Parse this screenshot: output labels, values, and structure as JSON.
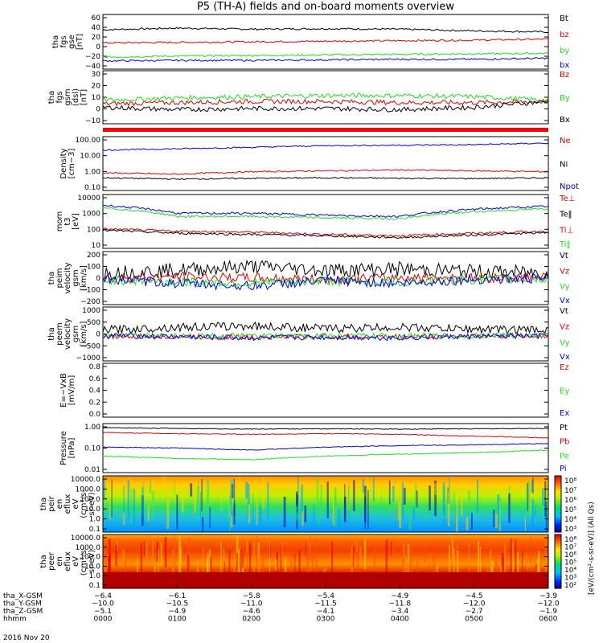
{
  "title": "P5 (TH-A) fields and on-board moments overview",
  "date_label": "2016 Nov 20",
  "colors": {
    "black": "#000000",
    "red": "#e00000",
    "green": "#20e020",
    "blue": "#0000e0",
    "flag": "#ff0000"
  },
  "panels": [
    {
      "id": "fgs-gse",
      "ylabel": [
        "tha",
        "fgs",
        "gse",
        "[nT]"
      ],
      "yticks": [
        "60",
        "40",
        "20",
        "0",
        "−20",
        "−40"
      ],
      "scale": "linear",
      "ylim": [
        -40,
        60
      ],
      "legend": [
        {
          "text": "Bt",
          "color": "#000000"
        },
        {
          "text": "bz",
          "color": "#e00000"
        },
        {
          "text": "by",
          "color": "#20e020"
        },
        {
          "text": "bx",
          "color": "#0000e0"
        }
      ]
    },
    {
      "id": "fgs-gsm",
      "ylabel": [
        "tha",
        "fgs",
        "gsm",
        "(dsl)",
        "[nT]"
      ],
      "yticks": [
        "30",
        "20",
        "10",
        "0",
        "−10"
      ],
      "scale": "linear",
      "ylim": [
        -15,
        30
      ],
      "legend": [
        {
          "text": "Bz",
          "color": "#e00000"
        },
        {
          "text": "By",
          "color": "#20e020"
        },
        {
          "text": "Bx",
          "color": "#000000"
        }
      ]
    },
    {
      "id": "density",
      "ylabel": [
        "Density",
        "[cm−3]"
      ],
      "yticks": [
        "100.00",
        "10.00",
        "1.00",
        "0.10"
      ],
      "scale": "log",
      "ylim": [
        0.05,
        100
      ],
      "legend": [
        {
          "text": "Ne",
          "color": "#e00000"
        },
        {
          "text": "Ni",
          "color": "#000000"
        },
        {
          "text": "Npot",
          "color": "#0000e0"
        }
      ]
    },
    {
      "id": "temperature",
      "ylabel": [
        "mom",
        "t3",
        "[eV]"
      ],
      "yticks": [
        "10000",
        "1000",
        "100",
        "10"
      ],
      "scale": "log",
      "ylim": [
        10,
        10000
      ],
      "legend": [
        {
          "text": "Te⊥",
          "color": "#e00000"
        },
        {
          "text": "Te‖",
          "color": "#000000"
        },
        {
          "text": "Ti⊥",
          "color": "#e00000"
        },
        {
          "text": "Ti‖",
          "color": "#20e020"
        }
      ]
    },
    {
      "id": "peim-velocity",
      "ylabel": [
        "tha",
        "peim",
        "velocity",
        "gsm",
        "[km/s]"
      ],
      "yticks": [
        "200",
        "100",
        "0",
        "−100",
        "−200"
      ],
      "scale": "linear",
      "ylim": [
        -200,
        200
      ],
      "legend": [
        {
          "text": "Vt",
          "color": "#000000"
        },
        {
          "text": "Vz",
          "color": "#e00000"
        },
        {
          "text": "Vy",
          "color": "#20e020"
        },
        {
          "text": "Vx",
          "color": "#0000e0"
        }
      ]
    },
    {
      "id": "peem-velocity",
      "ylabel": [
        "tha",
        "peem",
        "velocity",
        "gsm",
        "[km/s]"
      ],
      "yticks": [
        "1000",
        "500",
        "0",
        "−500",
        "−1000"
      ],
      "scale": "linear",
      "ylim": [
        -1000,
        1000
      ],
      "legend": [
        {
          "text": "Vt",
          "color": "#000000"
        },
        {
          "text": "Vz",
          "color": "#e00000"
        },
        {
          "text": "Vy",
          "color": "#20e020"
        },
        {
          "text": "Vx",
          "color": "#0000e0"
        }
      ]
    },
    {
      "id": "efield",
      "ylabel": [
        "E=−VxB",
        "[mV/m]"
      ],
      "yticks": [
        "0.8",
        "0.6",
        "0.4",
        "0.2",
        "0.0"
      ],
      "scale": "linear",
      "ylim": [
        0,
        0.8
      ],
      "legend": [
        {
          "text": "Ez",
          "color": "#e00000"
        },
        {
          "text": "Ey",
          "color": "#20e020"
        },
        {
          "text": "Ex",
          "color": "#0000e0"
        }
      ]
    },
    {
      "id": "pressure",
      "ylabel": [
        "Pressure",
        "[nPa]"
      ],
      "yticks": [
        "1.00",
        "0.10",
        "0.01"
      ],
      "scale": "log",
      "ylim": [
        0.01,
        1.2
      ],
      "legend": [
        {
          "text": "Pt",
          "color": "#000000"
        },
        {
          "text": "Pb",
          "color": "#e00000"
        },
        {
          "text": "Pe",
          "color": "#20e020"
        },
        {
          "text": "Pi",
          "color": "#0000e0"
        }
      ]
    },
    {
      "id": "peir-spectrogram",
      "ylabel": [
        "tha",
        "peir",
        "en",
        "eflux",
        "eV",
        "(cm²-s-",
        "sr-eV)"
      ],
      "yticks": [
        "10000.0",
        "1000.0",
        "100.0",
        "10.0",
        "1.0",
        "0.1"
      ],
      "scale": "log"
    },
    {
      "id": "peer-spectrogram",
      "ylabel": [
        "tha",
        "peer",
        "en",
        "eflux",
        "eV",
        "(cm²-s-",
        "sr-eV)"
      ],
      "yticks": [
        "10000.0",
        "1000.0",
        "100.0",
        "10.0",
        "1.0",
        "0.1"
      ],
      "scale": "log"
    }
  ],
  "colorbar": {
    "upper_ticks": [
      "10⁸",
      "10⁷",
      "10⁶",
      "10⁵",
      "10⁴",
      "10³"
    ],
    "lower_ticks": [
      "10⁸",
      "10⁷",
      "10⁶",
      "10⁵",
      "10⁴",
      "10³",
      "10²"
    ],
    "label": "[eV/(cm²-s-sr-eV)] (All Qs)"
  },
  "xaxis": {
    "rows": [
      {
        "label": "tha_X-GSM",
        "values": [
          "−6.4",
          "−6.1",
          "−5.8",
          "−5.4",
          "−4.9",
          "−4.5",
          "−3.9"
        ]
      },
      {
        "label": "tha_Y-GSM",
        "values": [
          "−10.0",
          "−10.5",
          "−11.0",
          "−11.5",
          "−11.8",
          "−12.0",
          "−12.0"
        ]
      },
      {
        "label": "tha_Z-GSM",
        "values": [
          "−5.1",
          "−4.9",
          "−4.6",
          "−4.1",
          "−3.4",
          "−2.7",
          "−1.9"
        ]
      },
      {
        "label": "hhmm",
        "values": [
          "0000",
          "0100",
          "0200",
          "0300",
          "0400",
          "0500",
          "0600"
        ]
      }
    ]
  },
  "chart_data": [
    {
      "type": "line",
      "title": "tha fgs gse",
      "ylabel": "[nT]",
      "ylim": [
        -40,
        60
      ],
      "x_hours": [
        0,
        1,
        2,
        3,
        4,
        5,
        6
      ],
      "series": [
        {
          "name": "Bt",
          "values": [
            32,
            35,
            33,
            34,
            33,
            30,
            28
          ]
        },
        {
          "name": "bz",
          "values": [
            8,
            9,
            10,
            11,
            12,
            13,
            15
          ]
        },
        {
          "name": "by",
          "values": [
            -18,
            -16,
            -15,
            -14,
            -13,
            -12,
            -11
          ]
        },
        {
          "name": "bx",
          "values": [
            -25,
            -24,
            -24,
            -23,
            -22,
            -22,
            -20
          ]
        }
      ]
    },
    {
      "type": "line",
      "title": "tha fgs gsm (dsl)",
      "ylabel": "[nT]",
      "ylim": [
        -15,
        30
      ],
      "x_hours": [
        0,
        1,
        2,
        3,
        4,
        5,
        6
      ],
      "series": [
        {
          "name": "Bz",
          "values": [
            2,
            3,
            4,
            4,
            3,
            3,
            4
          ]
        },
        {
          "name": "By",
          "values": [
            5,
            7,
            8,
            9,
            9,
            8,
            5
          ]
        },
        {
          "name": "Bx",
          "values": [
            -1,
            -3,
            -2,
            -2,
            -3,
            -1,
            4
          ]
        }
      ]
    },
    {
      "type": "line",
      "title": "Density",
      "ylabel": "[cm−3]",
      "scale": "log",
      "ylim": [
        0.05,
        100
      ],
      "x_hours": [
        0,
        1,
        2,
        3,
        4,
        5,
        6
      ],
      "series": [
        {
          "name": "Ne",
          "values": [
            0.6,
            0.5,
            0.7,
            0.8,
            0.9,
            0.8,
            0.7
          ]
        },
        {
          "name": "Ni",
          "values": [
            0.3,
            0.25,
            0.28,
            0.3,
            0.28,
            0.27,
            0.3
          ]
        },
        {
          "name": "Npot",
          "values": [
            15,
            18,
            22,
            28,
            30,
            32,
            40
          ]
        }
      ]
    },
    {
      "type": "line",
      "title": "mom t3",
      "ylabel": "[eV]",
      "scale": "log",
      "ylim": [
        10,
        10000
      ],
      "x_hours": [
        0,
        1,
        2,
        3,
        4,
        5,
        6
      ],
      "series": [
        {
          "name": "Te⊥",
          "values": [
            120,
            90,
            80,
            60,
            50,
            70,
            90
          ]
        },
        {
          "name": "Te‖",
          "values": [
            100,
            70,
            60,
            50,
            40,
            55,
            75
          ]
        },
        {
          "name": "Ti⊥",
          "values": [
            2500,
            900,
            900,
            700,
            600,
            1500,
            2200
          ]
        },
        {
          "name": "Ti‖",
          "values": [
            1800,
            600,
            600,
            500,
            450,
            1100,
            1600
          ]
        }
      ]
    },
    {
      "type": "line",
      "title": "tha peim velocity gsm",
      "ylabel": "[km/s]",
      "ylim": [
        -200,
        200
      ],
      "x_hours": [
        0,
        1,
        2,
        3,
        4,
        5,
        6
      ],
      "series": [
        {
          "name": "Vt",
          "values": [
            40,
            60,
            90,
            60,
            70,
            50,
            40
          ]
        },
        {
          "name": "Vz",
          "values": [
            0,
            10,
            0,
            -10,
            5,
            0,
            5
          ]
        },
        {
          "name": "Vy",
          "values": [
            -10,
            -30,
            -40,
            -20,
            -30,
            -10,
            -10
          ]
        },
        {
          "name": "Vx",
          "values": [
            -5,
            -40,
            -60,
            -20,
            -40,
            -10,
            -5
          ]
        }
      ]
    },
    {
      "type": "line",
      "title": "tha peem velocity gsm",
      "ylabel": "[km/s]",
      "ylim": [
        -1000,
        1000
      ],
      "x_hours": [
        0,
        1,
        2,
        3,
        4,
        5,
        6
      ],
      "series": [
        {
          "name": "Vt",
          "values": [
            150,
            250,
            300,
            200,
            250,
            180,
            150
          ]
        },
        {
          "name": "Vz",
          "values": [
            -80,
            -100,
            -120,
            -90,
            -110,
            -80,
            -70
          ]
        },
        {
          "name": "Vy",
          "values": [
            -50,
            -60,
            -90,
            -70,
            -80,
            -60,
            -50
          ]
        },
        {
          "name": "Vx",
          "values": [
            -60,
            -100,
            -150,
            -120,
            -140,
            -90,
            -70
          ]
        }
      ]
    },
    {
      "type": "line",
      "title": "E=−VxB",
      "ylabel": "[mV/m]",
      "ylim": [
        0,
        0.8
      ],
      "x_hours": [],
      "series": [
        {
          "name": "Ez",
          "values": []
        },
        {
          "name": "Ey",
          "values": []
        },
        {
          "name": "Ex",
          "values": []
        }
      ]
    },
    {
      "type": "line",
      "title": "Pressure",
      "ylabel": "[nPa]",
      "scale": "log",
      "ylim": [
        0.01,
        1.2
      ],
      "x_hours": [
        0,
        1,
        2,
        3,
        4,
        5,
        6
      ],
      "series": [
        {
          "name": "Pt",
          "values": [
            0.8,
            0.75,
            0.7,
            0.72,
            0.7,
            0.72,
            0.75
          ]
        },
        {
          "name": "Pb",
          "values": [
            0.5,
            0.45,
            0.42,
            0.45,
            0.42,
            0.35,
            0.3
          ]
        },
        {
          "name": "Pe",
          "values": [
            0.05,
            0.04,
            0.035,
            0.05,
            0.06,
            0.07,
            0.09
          ]
        },
        {
          "name": "Pi",
          "values": [
            0.12,
            0.11,
            0.09,
            0.12,
            0.14,
            0.15,
            0.17
          ]
        }
      ]
    },
    {
      "type": "heatmap",
      "title": "tha peir en eflux",
      "ylabel": "eV",
      "scale": "log",
      "ylim": [
        0.1,
        20000
      ]
    },
    {
      "type": "heatmap",
      "title": "tha peer en eflux",
      "ylabel": "eV",
      "scale": "log",
      "ylim": [
        0.1,
        20000
      ]
    }
  ]
}
